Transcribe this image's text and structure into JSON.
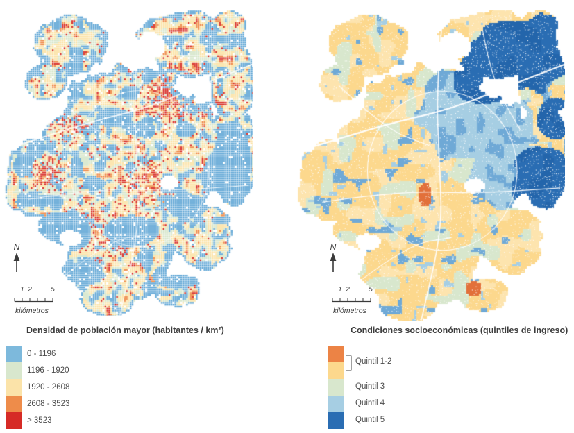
{
  "north": {
    "label": "N"
  },
  "scalebar": {
    "labels": [
      "1",
      "2",
      "5"
    ],
    "unit": "kilómetros"
  },
  "legend_left": {
    "title": "Densidad de población mayor (habitantes / km²)",
    "items": [
      {
        "label": "0 - 1196",
        "color": "#7db9dc"
      },
      {
        "label": "1196 - 1920",
        "color": "#d8e7cd"
      },
      {
        "label": "1920 - 2608",
        "color": "#fbe3a9"
      },
      {
        "label": "2608 - 3523",
        "color": "#ee8c4a"
      },
      {
        "label": "> 3523",
        "color": "#d62b26"
      }
    ]
  },
  "legend_right": {
    "title": "Condiciones socioeconómicas (quintiles de ingreso)",
    "swatches": [
      "#ec8345",
      "#fcd88d",
      "#d8e7cd",
      "#a6cee3",
      "#2a6db3"
    ],
    "labels": [
      "Quintil 1-2",
      "Quintil 3",
      "Quintil 4",
      "Quintil 5"
    ]
  },
  "map_palettes": {
    "left": {
      "blue": "#63a8d6",
      "green": "#d6e6cb",
      "cream": "#fbe3a7",
      "orange": "#ee8b49",
      "red": "#d72e27"
    },
    "right": {
      "yellow": "#fcd88d",
      "yellow2": "#fde4ae",
      "green": "#d8e7cd",
      "lightblue": "#a6cee3",
      "midblue": "#6fa9d6",
      "darkblue": "#2a6db3",
      "darkblue2": "#2365ab",
      "orange": "#e2703a",
      "red": "#e0283c"
    }
  }
}
